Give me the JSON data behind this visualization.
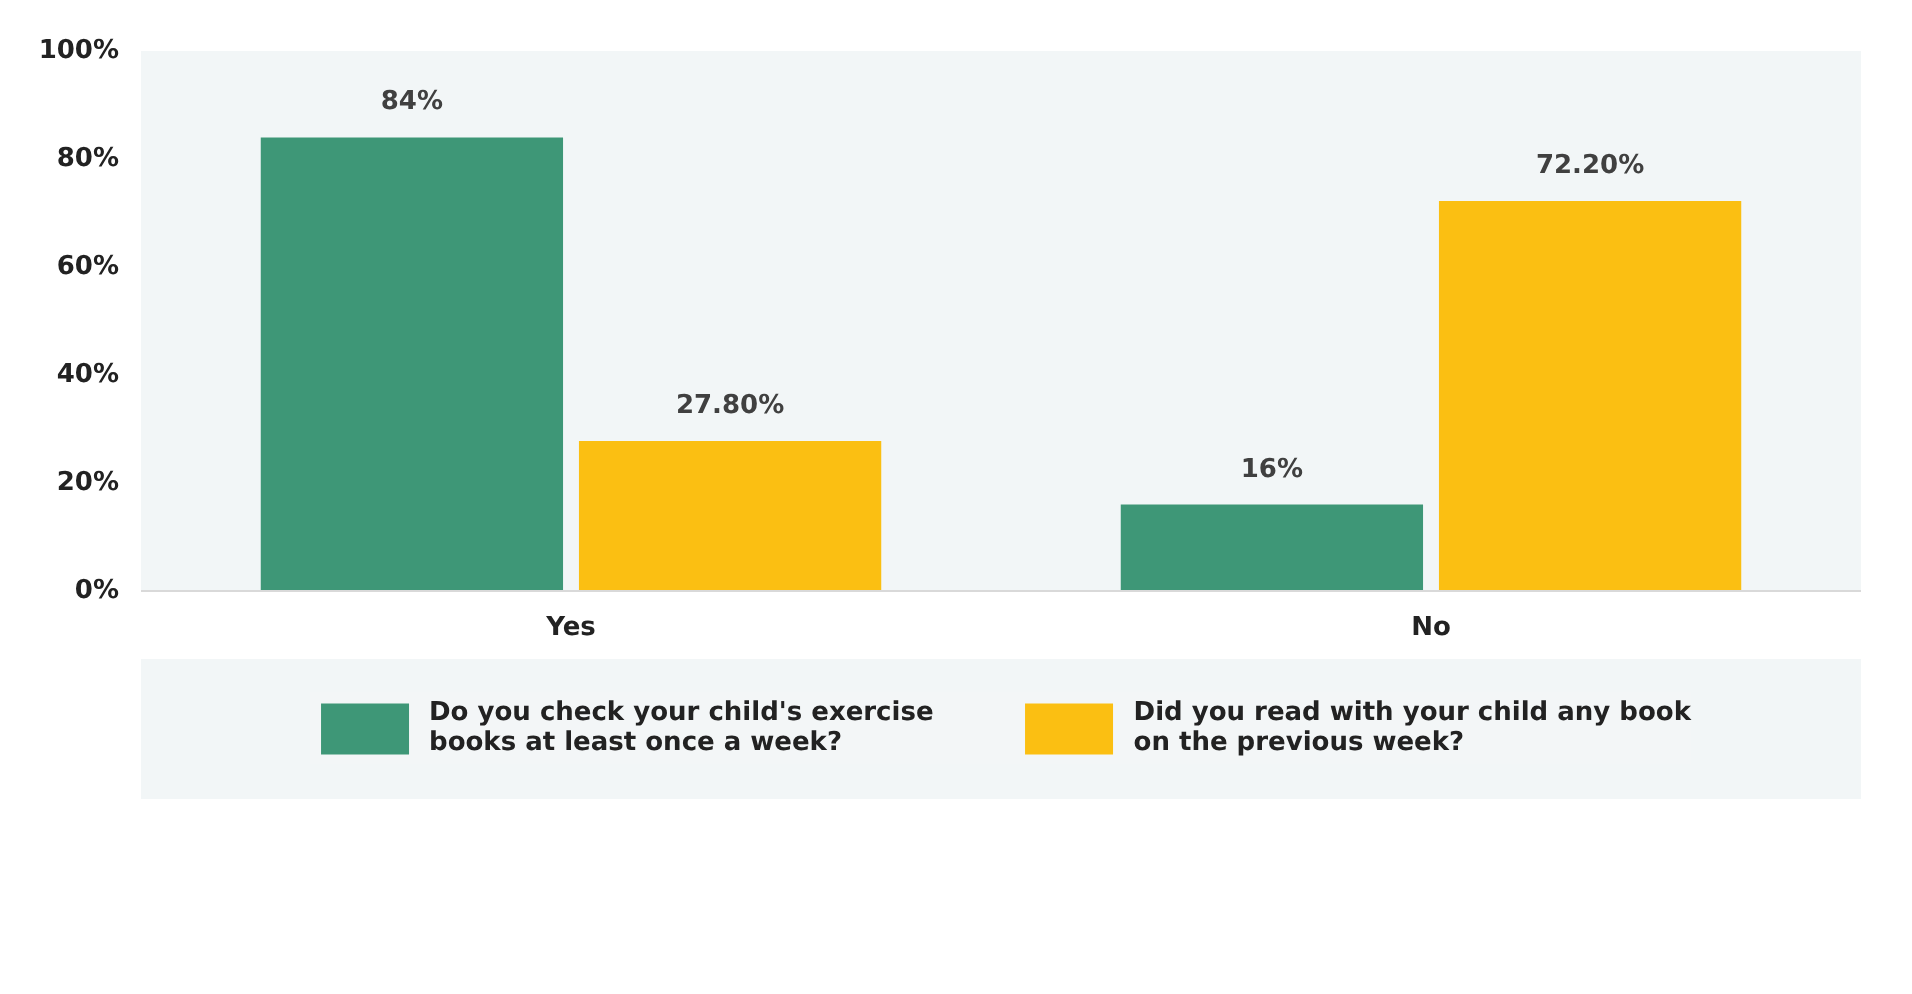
{
  "chart_data": {
    "type": "bar",
    "categories": [
      "Yes",
      "No"
    ],
    "series": [
      {
        "name": "Do you check your child's exercise books at least once a week?",
        "color": "#3e9777",
        "values": [
          84,
          16
        ],
        "value_labels": [
          "84%",
          "16%"
        ]
      },
      {
        "name": "Did you read with your child any book on the previous week?",
        "color": "#fbbf12",
        "values": [
          27.8,
          72.2
        ],
        "value_labels": [
          "27.80%",
          "72.20%"
        ]
      }
    ],
    "ylim": [
      0,
      100
    ],
    "yticks": [
      {
        "value": 0,
        "label": "0%"
      },
      {
        "value": 20,
        "label": "20%"
      },
      {
        "value": 40,
        "label": "40%"
      },
      {
        "value": 60,
        "label": "60%"
      },
      {
        "value": 80,
        "label": "80%"
      },
      {
        "value": 100,
        "label": "100%"
      }
    ],
    "grid": false,
    "legend": "bottom"
  }
}
